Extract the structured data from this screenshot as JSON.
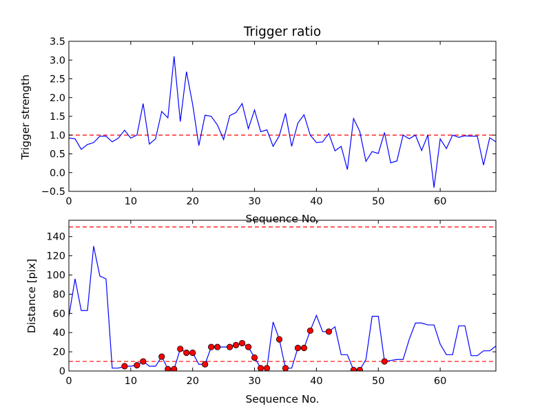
{
  "chart_data": [
    {
      "type": "line",
      "title": "Trigger ratio",
      "xlabel": "Sequence No.",
      "ylabel": "Trigger strength",
      "xlim": [
        0,
        69
      ],
      "ylim": [
        -0.5,
        3.5
      ],
      "x_ticks": [
        0,
        10,
        20,
        30,
        40,
        50,
        60
      ],
      "y_ticks": [
        -0.5,
        0.0,
        0.5,
        1.0,
        1.5,
        2.0,
        2.5,
        3.0,
        3.5
      ],
      "x_tick_labels": [
        "0",
        "10",
        "20",
        "30",
        "40",
        "50",
        "60"
      ],
      "y_tick_labels": [
        "−0.5",
        "0.0",
        "0.5",
        "1.0",
        "1.5",
        "2.0",
        "2.5",
        "3.0",
        "3.5"
      ],
      "series": [
        {
          "color": "#0000ff",
          "x": [
            0,
            1,
            2,
            3,
            4,
            5,
            6,
            7,
            8,
            9,
            10,
            11,
            12,
            13,
            14,
            15,
            16,
            17,
            18,
            19,
            20,
            21,
            22,
            23,
            24,
            25,
            26,
            27,
            28,
            29,
            30,
            31,
            32,
            33,
            34,
            35,
            36,
            37,
            38,
            39,
            40,
            41,
            42,
            43,
            44,
            45,
            46,
            47,
            48,
            49,
            50,
            51,
            52,
            53,
            54,
            55,
            56,
            57,
            58,
            59,
            60,
            61,
            62,
            63,
            64,
            65,
            66,
            67,
            68,
            69
          ],
          "values": [
            0.92,
            0.9,
            0.62,
            0.75,
            0.8,
            0.97,
            0.97,
            0.82,
            0.92,
            1.13,
            0.92,
            1.0,
            1.84,
            0.76,
            0.9,
            1.63,
            1.46,
            3.1,
            1.36,
            2.69,
            1.82,
            0.72,
            1.53,
            1.5,
            1.27,
            0.88,
            1.52,
            1.6,
            1.84,
            1.17,
            1.67,
            1.09,
            1.14,
            0.7,
            0.98,
            1.58,
            0.7,
            1.32,
            1.54,
            1.0,
            0.8,
            0.82,
            1.04,
            0.58,
            0.7,
            0.08,
            1.44,
            1.1,
            0.3,
            0.56,
            0.51,
            1.07,
            0.26,
            0.31,
            1.0,
            0.9,
            1.0,
            0.59,
            1.0,
            -0.4,
            0.9,
            0.64,
            1.0,
            0.94,
            0.98,
            0.97,
            0.97,
            0.2,
            0.93,
            0.82
          ]
        }
      ],
      "reference_lines": [
        {
          "y": 1.0,
          "color": "#ff0000",
          "style": "dashed"
        }
      ]
    },
    {
      "type": "line",
      "title": "",
      "xlabel": "Sequence No.",
      "ylabel": "Distance [pix]",
      "xlim": [
        0,
        69
      ],
      "ylim": [
        0,
        157
      ],
      "x_ticks": [
        0,
        10,
        20,
        30,
        40,
        50,
        60
      ],
      "y_ticks": [
        0,
        20,
        40,
        60,
        80,
        100,
        120,
        140
      ],
      "x_tick_labels": [
        "0",
        "10",
        "20",
        "30",
        "40",
        "50",
        "60"
      ],
      "y_tick_labels": [
        "0",
        "20",
        "40",
        "60",
        "80",
        "100",
        "120",
        "140"
      ],
      "series": [
        {
          "color": "#0000ff",
          "x": [
            0,
            1,
            2,
            3,
            4,
            5,
            6,
            7,
            8,
            9,
            10,
            11,
            12,
            13,
            14,
            15,
            16,
            17,
            18,
            19,
            20,
            21,
            22,
            23,
            24,
            25,
            26,
            27,
            28,
            29,
            30,
            31,
            32,
            33,
            34,
            35,
            36,
            37,
            38,
            39,
            40,
            41,
            42,
            43,
            44,
            45,
            46,
            47,
            48,
            49,
            50,
            51,
            52,
            53,
            54,
            55,
            56,
            57,
            58,
            59,
            60,
            61,
            62,
            63,
            64,
            65,
            66,
            67,
            68,
            69
          ],
          "values": [
            57,
            96,
            63,
            63,
            130,
            99,
            96,
            3,
            3,
            5,
            5,
            6,
            10,
            5,
            5,
            15,
            2,
            2,
            23,
            19,
            19,
            7,
            7,
            25,
            25,
            25,
            25,
            27,
            29,
            25,
            14,
            3,
            3,
            51,
            33,
            3,
            3,
            24,
            24,
            42,
            58,
            41,
            41,
            46,
            17,
            17,
            1,
            1,
            12,
            57,
            57,
            10,
            11,
            12,
            12,
            33,
            50,
            50,
            48,
            48,
            28,
            17,
            17,
            47,
            47,
            16,
            16,
            21,
            21,
            26
          ]
        },
        {
          "type": "scatter",
          "color": "#ff0000",
          "x": [
            9,
            11,
            12,
            15,
            16,
            17,
            18,
            19,
            20,
            22,
            23,
            24,
            26,
            27,
            28,
            29,
            30,
            31,
            32,
            34,
            35,
            37,
            38,
            39,
            42,
            46,
            47,
            51
          ],
          "values": [
            5,
            6,
            10,
            15,
            2,
            2,
            23,
            19,
            19,
            7,
            25,
            25,
            25,
            27,
            29,
            25,
            14,
            3,
            3,
            33,
            3,
            24,
            24,
            42,
            41,
            1,
            1,
            10
          ]
        }
      ],
      "reference_lines": [
        {
          "y": 150,
          "color": "#ff0000",
          "style": "dashed"
        },
        {
          "y": 10,
          "color": "#ff0000",
          "style": "dashed"
        }
      ]
    }
  ]
}
